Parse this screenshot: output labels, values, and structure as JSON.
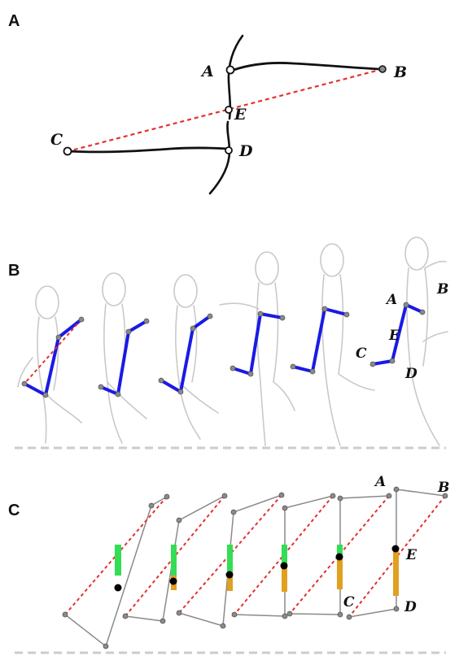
{
  "panels": {
    "a": {
      "label": "A",
      "points": {
        "A": "A",
        "B": "B",
        "C": "C",
        "D": "D",
        "E": "E"
      }
    },
    "b": {
      "label": "B",
      "points": {
        "A": "A",
        "B": "B",
        "C": "C",
        "D": "D",
        "E": "E"
      }
    },
    "c": {
      "label": "C",
      "points": {
        "A": "A",
        "B": "B",
        "C": "C",
        "D": "D",
        "E": "E"
      }
    }
  },
  "colors": {
    "limb": "#1a1ae6",
    "diagonal": "#e53030",
    "green_bar": "#33dd55",
    "orange_bar": "#e0a020",
    "outline": "#8a8a8a"
  }
}
